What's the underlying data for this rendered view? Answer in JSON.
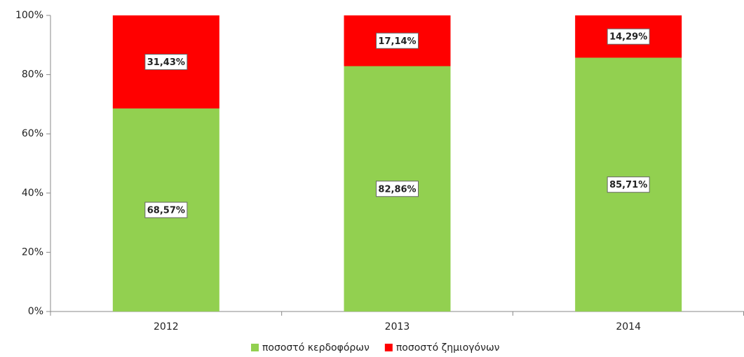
{
  "chart_data": {
    "type": "stacked_bar",
    "categories": [
      "2012",
      "2013",
      "2014"
    ],
    "series": [
      {
        "name": "ποσοστό κερδοφόρων",
        "color": "#92d050",
        "values": [
          68.57,
          82.86,
          85.71
        ],
        "value_labels": [
          "68,57%",
          "82,86%",
          "85,71%"
        ]
      },
      {
        "name": "ποσοστό ζημιογόνων",
        "color": "#ff0000",
        "values": [
          31.43,
          17.14,
          14.29
        ],
        "value_labels": [
          "31,43%",
          "17,14%",
          "14,29%"
        ]
      }
    ],
    "ylim": [
      0,
      100
    ],
    "yticks": [
      {
        "value": 0,
        "label": "0%"
      },
      {
        "value": 20,
        "label": "20%"
      },
      {
        "value": 40,
        "label": "40%"
      },
      {
        "value": 60,
        "label": "60%"
      },
      {
        "value": 80,
        "label": "80%"
      },
      {
        "value": 100,
        "label": "100%"
      }
    ],
    "grid": false,
    "legend": "bottom"
  }
}
